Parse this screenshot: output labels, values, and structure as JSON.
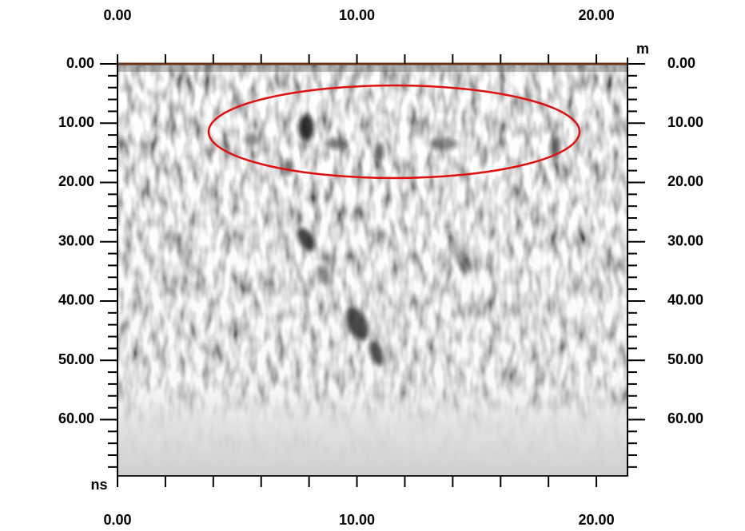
{
  "chart_data": {
    "type": "radargram",
    "x_unit": "m",
    "y_unit": "ns",
    "xlim": [
      0,
      21.3
    ],
    "ylim": [
      0,
      69.5
    ],
    "xticks": [
      {
        "value": 0,
        "label": "0.00"
      },
      {
        "value": 10,
        "label": "10.00"
      },
      {
        "value": 20,
        "label": "20.00"
      }
    ],
    "xminorticks": [
      2,
      4,
      6,
      8,
      12,
      14,
      16,
      18
    ],
    "yticks": [
      {
        "value": 0,
        "label": "0.00"
      },
      {
        "value": 10,
        "label": "10.00"
      },
      {
        "value": 20,
        "label": "20.00"
      },
      {
        "value": 30,
        "label": "30.00"
      },
      {
        "value": 40,
        "label": "40.00"
      },
      {
        "value": 50,
        "label": "50.00"
      },
      {
        "value": 60,
        "label": "60.00"
      }
    ],
    "yminorticks": [
      2,
      4,
      6,
      8,
      12,
      14,
      16,
      18,
      22,
      24,
      26,
      28,
      32,
      34,
      36,
      38,
      42,
      44,
      46,
      48,
      52,
      54,
      56,
      58,
      62,
      64,
      66,
      68
    ]
  }
}
